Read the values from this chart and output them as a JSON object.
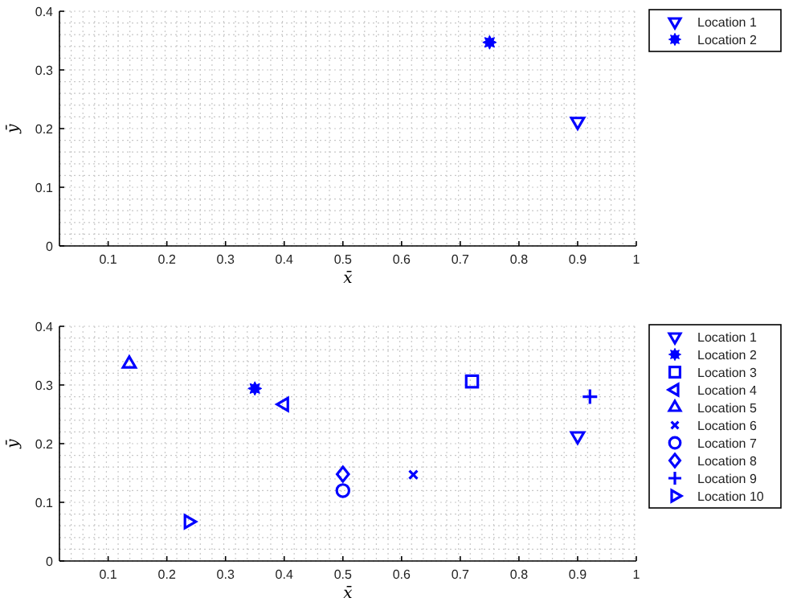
{
  "chart_data": [
    {
      "type": "scatter",
      "xlabel": "x̄",
      "ylabel": "ȳ",
      "xlim": [
        0.017,
        1
      ],
      "ylim": [
        0,
        0.4
      ],
      "xticks": [
        0.1,
        0.2,
        0.3,
        0.4,
        0.5,
        0.6,
        0.7,
        0.8,
        0.9,
        1
      ],
      "yticks": [
        0,
        0.1,
        0.2,
        0.3,
        0.4
      ],
      "grid": true,
      "legend": "top right",
      "series": [
        {
          "name": "Location 1",
          "color": "#0000ff",
          "marker": "triangle-down",
          "x": [
            0.9
          ],
          "values": [
            0.212
          ]
        },
        {
          "name": "Location 2",
          "color": "#0000ff",
          "marker": "star",
          "x": [
            0.75
          ],
          "values": [
            0.347
          ]
        }
      ]
    },
    {
      "type": "scatter",
      "xlabel": "x̄",
      "ylabel": "ȳ",
      "xlim": [
        0.017,
        1
      ],
      "ylim": [
        0,
        0.4
      ],
      "xticks": [
        0.1,
        0.2,
        0.3,
        0.4,
        0.5,
        0.6,
        0.7,
        0.8,
        0.9,
        1
      ],
      "yticks": [
        0,
        0.1,
        0.2,
        0.3,
        0.4
      ],
      "grid": true,
      "legend": "top right",
      "series": [
        {
          "name": "Location 1",
          "color": "#0000ff",
          "marker": "triangle-down",
          "x": [
            0.9
          ],
          "values": [
            0.213
          ]
        },
        {
          "name": "Location 2",
          "color": "#0000ff",
          "marker": "star",
          "x": [
            0.35
          ],
          "values": [
            0.294
          ]
        },
        {
          "name": "Location 3",
          "color": "#0000ff",
          "marker": "square",
          "x": [
            0.72
          ],
          "values": [
            0.306
          ]
        },
        {
          "name": "Location 4",
          "color": "#0000ff",
          "marker": "triangle-left",
          "x": [
            0.4
          ],
          "values": [
            0.267
          ]
        },
        {
          "name": "Location 5",
          "color": "#0000ff",
          "marker": "triangle",
          "x": [
            0.136
          ],
          "values": [
            0.336
          ]
        },
        {
          "name": "Location 6",
          "color": "#0000ff",
          "marker": "x",
          "x": [
            0.62
          ],
          "values": [
            0.147
          ]
        },
        {
          "name": "Location 7",
          "color": "#0000ff",
          "marker": "circle",
          "x": [
            0.5
          ],
          "values": [
            0.12
          ]
        },
        {
          "name": "Location 8",
          "color": "#0000ff",
          "marker": "diamond",
          "x": [
            0.5
          ],
          "values": [
            0.148
          ]
        },
        {
          "name": "Location 9",
          "color": "#0000ff",
          "marker": "plus",
          "x": [
            0.921
          ],
          "values": [
            0.28
          ]
        },
        {
          "name": "Location 10",
          "color": "#0000ff",
          "marker": "triangle-right",
          "x": [
            0.237
          ],
          "values": [
            0.067
          ]
        }
      ]
    }
  ]
}
